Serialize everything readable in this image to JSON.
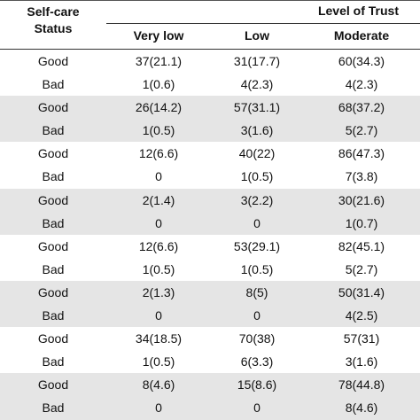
{
  "header": {
    "status_label_1": "Self-care",
    "status_label_2": "Status",
    "trust_label": "Level of Trust",
    "columns": [
      "Very low",
      "Low",
      "Moderate"
    ]
  },
  "rows": [
    {
      "status": "Good",
      "very_low": "37(21.1)",
      "low": "31(17.7)",
      "moderate": "60(34.3)"
    },
    {
      "status": "Bad",
      "very_low": "1(0.6)",
      "low": "4(2.3)",
      "moderate": "4(2.3)"
    },
    {
      "status": "Good",
      "very_low": "26(14.2)",
      "low": "57(31.1)",
      "moderate": "68(37.2)"
    },
    {
      "status": "Bad",
      "very_low": "1(0.5)",
      "low": "3(1.6)",
      "moderate": "5(2.7)"
    },
    {
      "status": "Good",
      "very_low": "12(6.6)",
      "low": "40(22)",
      "moderate": "86(47.3)"
    },
    {
      "status": "Bad",
      "very_low": "0",
      "low": "1(0.5)",
      "moderate": "7(3.8)"
    },
    {
      "status": "Good",
      "very_low": "2(1.4)",
      "low": "3(2.2)",
      "moderate": "30(21.6)"
    },
    {
      "status": "Bad",
      "very_low": "0",
      "low": "0",
      "moderate": "1(0.7)"
    },
    {
      "status": "Good",
      "very_low": "12(6.6)",
      "low": "53(29.1)",
      "moderate": "82(45.1)"
    },
    {
      "status": "Bad",
      "very_low": "1(0.5)",
      "low": "1(0.5)",
      "moderate": "5(2.7)"
    },
    {
      "status": "Good",
      "very_low": "2(1.3)",
      "low": "8(5)",
      "moderate": "50(31.4)"
    },
    {
      "status": "Bad",
      "very_low": "0",
      "low": "0",
      "moderate": "4(2.5)"
    },
    {
      "status": "Good",
      "very_low": "34(18.5)",
      "low": "70(38)",
      "moderate": "57(31)"
    },
    {
      "status": "Bad",
      "very_low": "1(0.5)",
      "low": "6(3.3)",
      "moderate": "3(1.6)"
    },
    {
      "status": "Good",
      "very_low": "8(4.6)",
      "low": "15(8.6)",
      "moderate": "78(44.8)"
    },
    {
      "status": "Bad",
      "very_low": "0",
      "low": "0",
      "moderate": "8(4.6)"
    }
  ],
  "shade_color": "#e5e5e5"
}
